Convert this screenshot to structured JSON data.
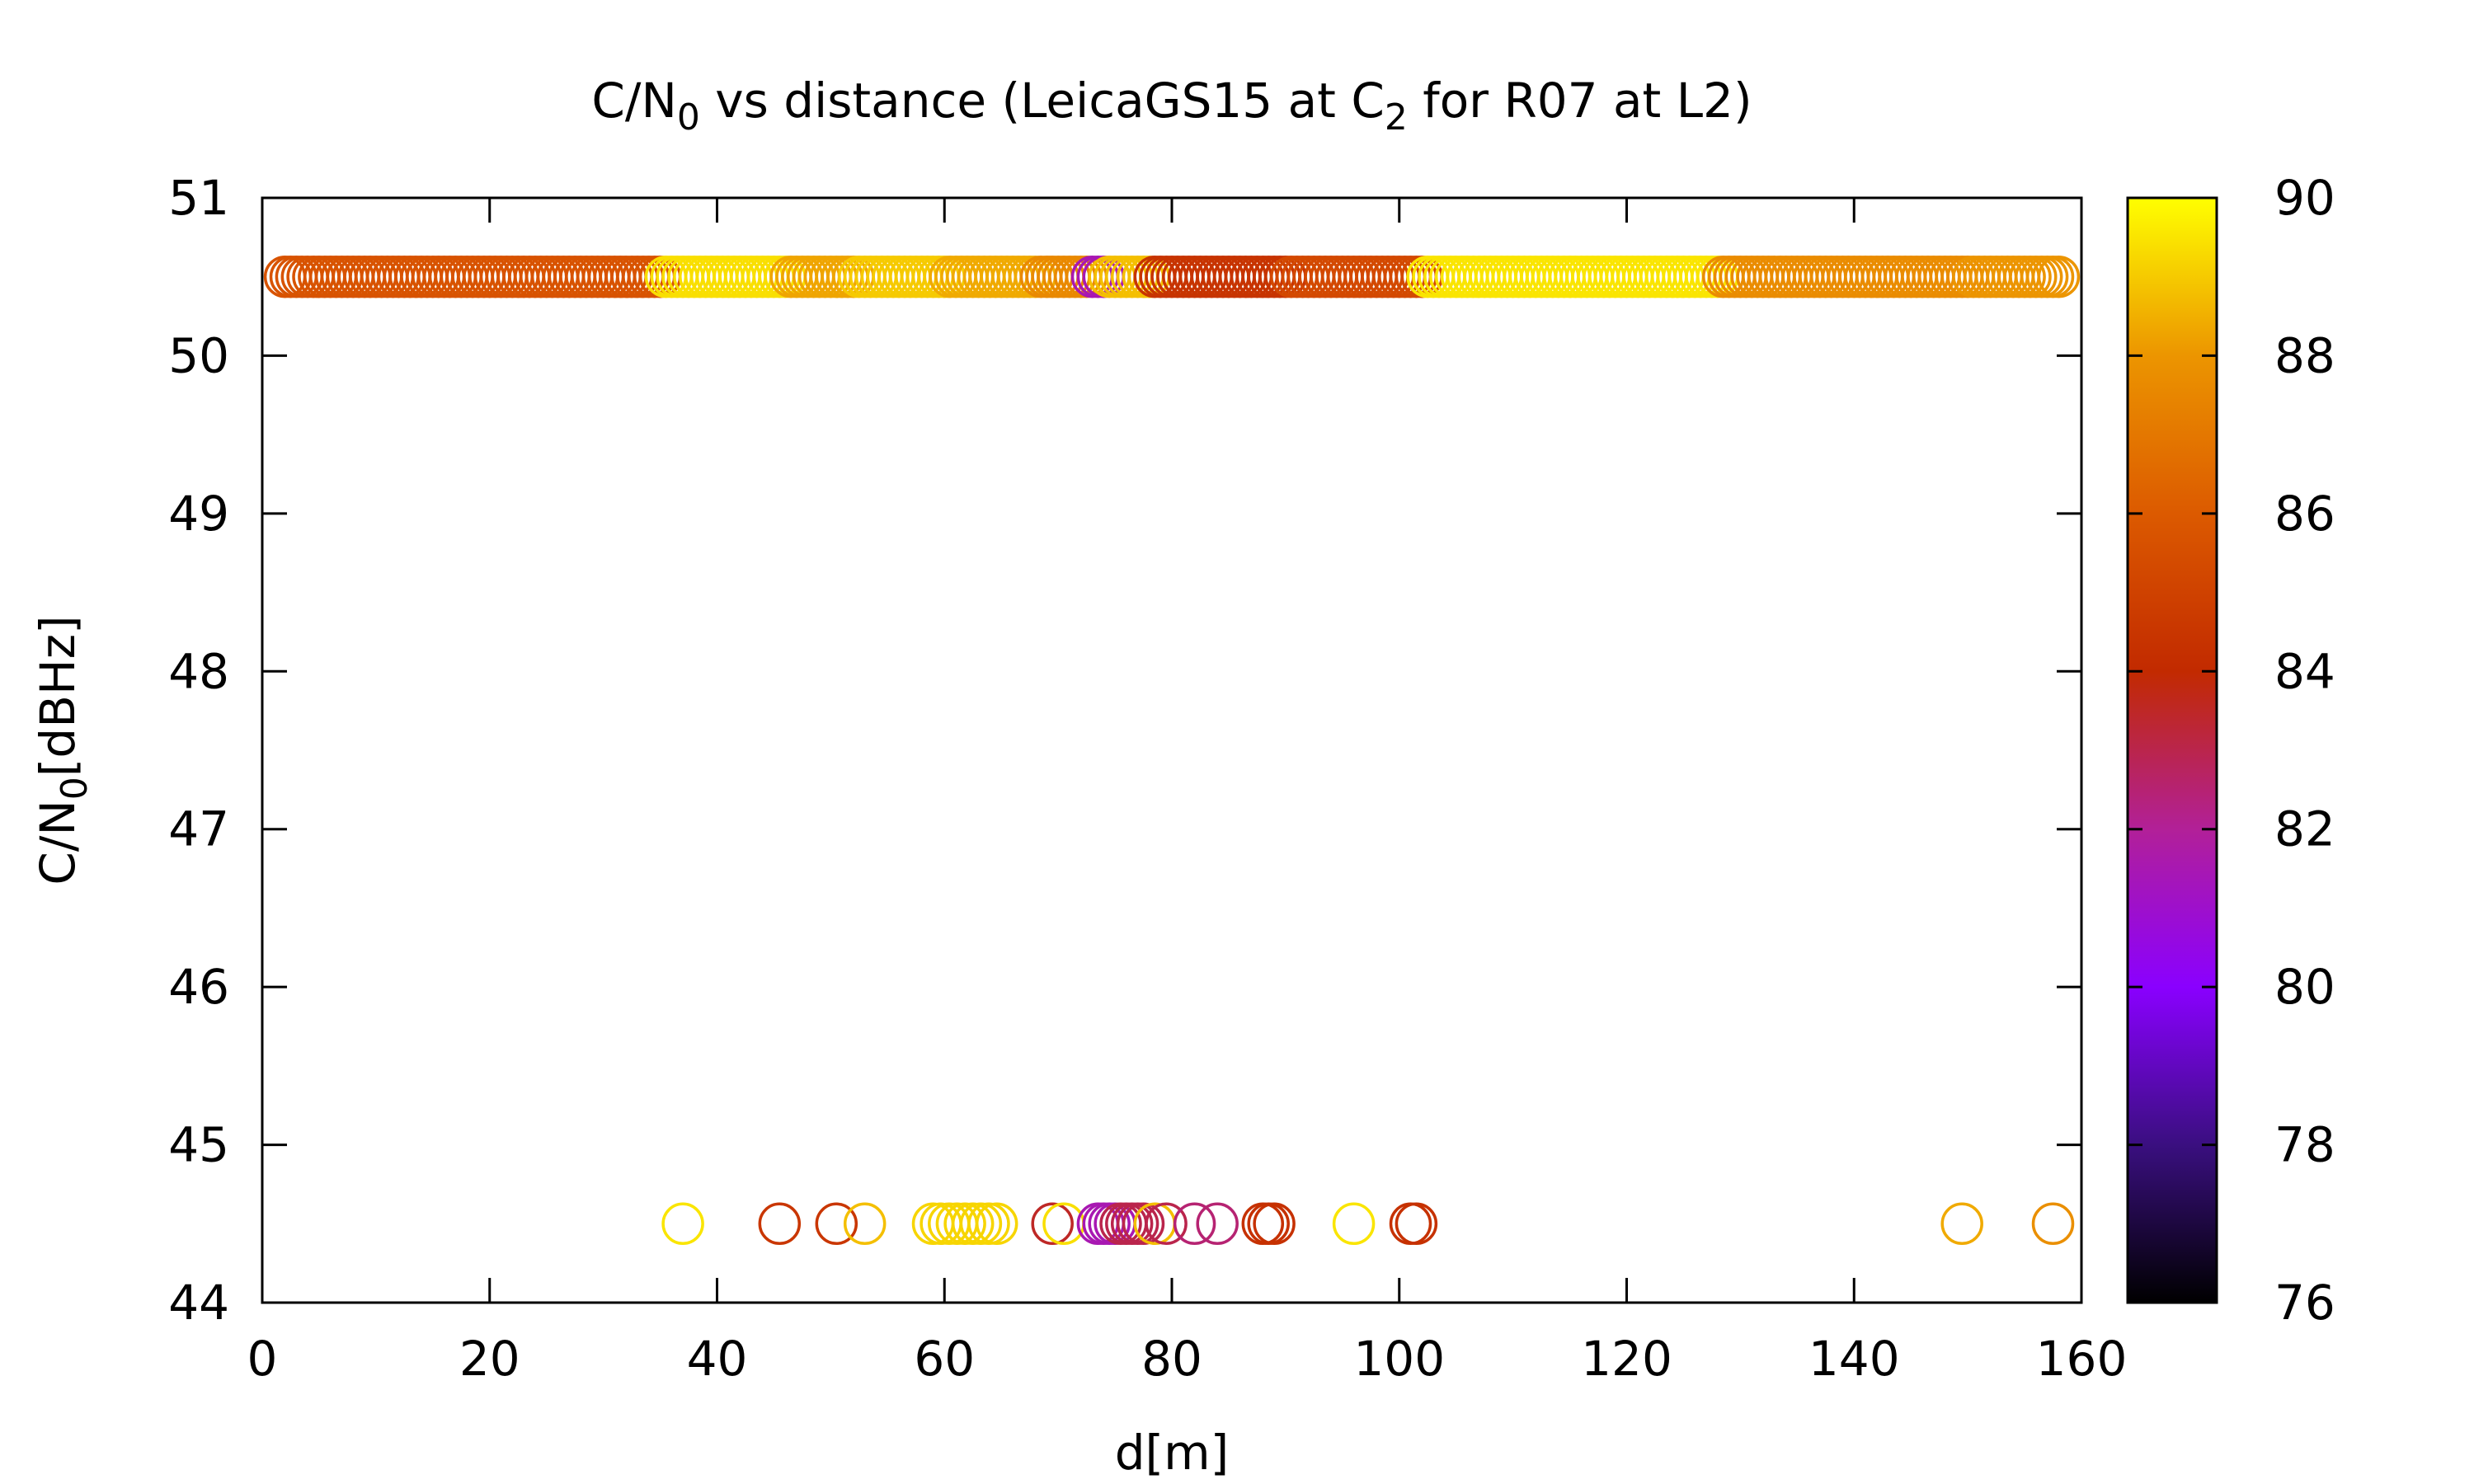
{
  "chart_data": {
    "type": "scatter",
    "title": {
      "parts": [
        {
          "text": "C/N",
          "sub": false
        },
        {
          "text": "0",
          "sub": true
        },
        {
          "text": " vs distance (LeicaGS15 at C",
          "sub": false
        },
        {
          "text": "2",
          "sub": true
        },
        {
          "text": " for R07 at L2)",
          "sub": false
        }
      ]
    },
    "xlabel": "d[m]",
    "ylabel": {
      "parts": [
        {
          "text": "C/N",
          "sub": false
        },
        {
          "text": "0",
          "sub": true
        },
        {
          "text": "[dBHz]",
          "sub": false
        }
      ]
    },
    "xlim": [
      0,
      160
    ],
    "ylim": [
      44,
      51
    ],
    "xticks": [
      0,
      20,
      40,
      60,
      80,
      100,
      120,
      140,
      160
    ],
    "yticks": [
      44,
      45,
      46,
      47,
      48,
      49,
      50,
      51
    ],
    "grid": false,
    "legend": "none",
    "marker": "open-circle",
    "colorbar": {
      "min": 76,
      "max": 90,
      "ticks": [
        76,
        78,
        80,
        82,
        84,
        86,
        88,
        90
      ],
      "palette": "black-purple-red-orange-yellow"
    },
    "color_stops": [
      {
        "v": 76,
        "color": "#000000"
      },
      {
        "v": 78,
        "color": "#3a0f80"
      },
      {
        "v": 80,
        "color": "#8a00ff"
      },
      {
        "v": 82,
        "color": "#b22098"
      },
      {
        "v": 84,
        "color": "#c22a00"
      },
      {
        "v": 86,
        "color": "#dc5a00"
      },
      {
        "v": 88,
        "color": "#ec9500"
      },
      {
        "v": 90,
        "color": "#ffff00"
      }
    ],
    "series": [
      {
        "y": 50.5,
        "segments": [
          {
            "x_start": 2,
            "x_end": 35,
            "step": 0.5,
            "color_value": 85.7
          },
          {
            "x_start": 35.5,
            "x_end": 46,
            "step": 0.5,
            "color_value": 89.4
          },
          {
            "x_start": 46.5,
            "x_end": 52,
            "step": 0.5,
            "color_value": 88.3
          },
          {
            "x_start": 52.5,
            "x_end": 60,
            "step": 0.5,
            "color_value": 89.0
          },
          {
            "x_start": 60.5,
            "x_end": 68,
            "step": 0.5,
            "color_value": 88.4
          },
          {
            "x_start": 68.5,
            "x_end": 72.5,
            "step": 0.5,
            "color_value": 87.6
          },
          {
            "x_start": 73,
            "x_end": 74,
            "step": 0.5,
            "color_value": 81.5
          },
          {
            "x_start": 74.5,
            "x_end": 78,
            "step": 0.5,
            "color_value": 88.8
          },
          {
            "x_start": 78.5,
            "x_end": 90,
            "step": 0.5,
            "color_value": 84.4
          },
          {
            "x_start": 90.5,
            "x_end": 102,
            "step": 0.5,
            "color_value": 85.3
          },
          {
            "x_start": 102.5,
            "x_end": 128,
            "step": 0.5,
            "color_value": 89.5
          },
          {
            "x_start": 128.5,
            "x_end": 150,
            "step": 0.5,
            "color_value": 87.7
          },
          {
            "x_start": 150.5,
            "x_end": 158,
            "step": 0.5,
            "color_value": 88.0
          }
        ]
      },
      {
        "y": 44.5,
        "points": [
          {
            "x": 37,
            "c": 89.5
          },
          {
            "x": 45.5,
            "c": 84.5
          },
          {
            "x": 50.5,
            "c": 84.5
          },
          {
            "x": 53,
            "c": 88.8
          },
          {
            "x": 59,
            "c": 89.2
          },
          {
            "x": 59.7,
            "c": 89.2
          },
          {
            "x": 60.4,
            "c": 89.2
          },
          {
            "x": 61.1,
            "c": 89.2
          },
          {
            "x": 61.8,
            "c": 89.2
          },
          {
            "x": 62.5,
            "c": 89.2
          },
          {
            "x": 63.2,
            "c": 89.2
          },
          {
            "x": 63.9,
            "c": 89.2
          },
          {
            "x": 64.6,
            "c": 89.2
          },
          {
            "x": 69.5,
            "c": 83.5
          },
          {
            "x": 70.5,
            "c": 89.4
          },
          {
            "x": 73.5,
            "c": 81.5
          },
          {
            "x": 74,
            "c": 81.5
          },
          {
            "x": 74.5,
            "c": 81.5
          },
          {
            "x": 75,
            "c": 81.5
          },
          {
            "x": 75.5,
            "c": 83.0
          },
          {
            "x": 76,
            "c": 83.0
          },
          {
            "x": 76.5,
            "c": 83.0
          },
          {
            "x": 77,
            "c": 83.0
          },
          {
            "x": 77.5,
            "c": 83.0
          },
          {
            "x": 78.5,
            "c": 88.8
          },
          {
            "x": 79.5,
            "c": 83.0
          },
          {
            "x": 82,
            "c": 82.5
          },
          {
            "x": 84,
            "c": 82.5
          },
          {
            "x": 88,
            "c": 84.3
          },
          {
            "x": 88.5,
            "c": 84.3
          },
          {
            "x": 89,
            "c": 84.3
          },
          {
            "x": 96,
            "c": 89.5
          },
          {
            "x": 101,
            "c": 84.3
          },
          {
            "x": 101.5,
            "c": 84.3
          },
          {
            "x": 149.5,
            "c": 88.4
          },
          {
            "x": 157.5,
            "c": 87.8
          }
        ]
      }
    ]
  }
}
